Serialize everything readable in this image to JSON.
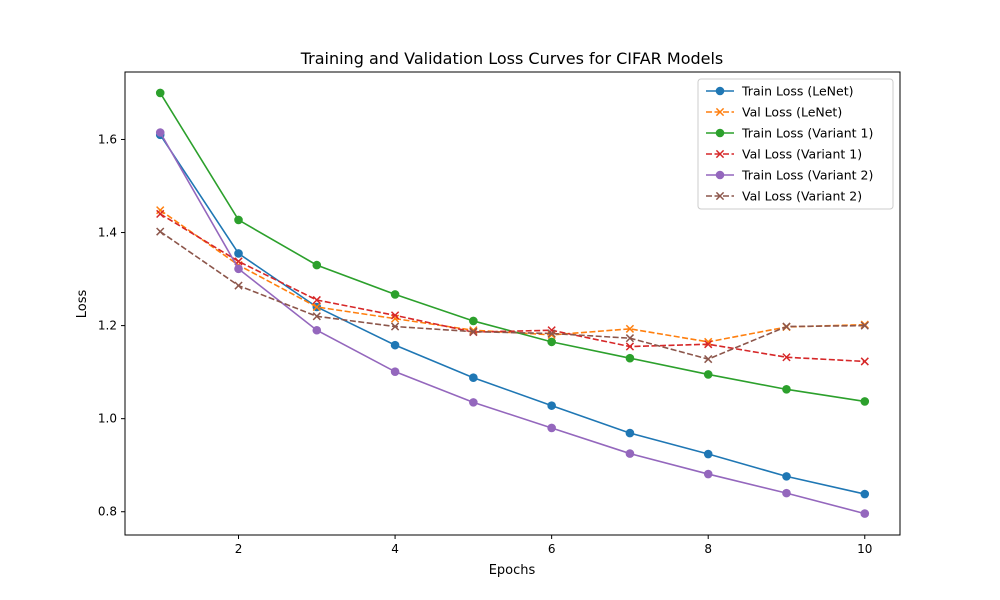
{
  "chart_data": {
    "type": "line",
    "title": "Training and Validation Loss Curves for CIFAR Models",
    "xlabel": "Epochs",
    "ylabel": "Loss",
    "xlim": [
      0.55,
      10.45
    ],
    "ylim": [
      0.75,
      1.745
    ],
    "xticks": [
      2,
      4,
      6,
      8,
      10
    ],
    "yticks": [
      0.8,
      1.0,
      1.2,
      1.4,
      1.6
    ],
    "grid": false,
    "legend_position": "top-right",
    "x": [
      1,
      2,
      3,
      4,
      5,
      6,
      7,
      8,
      9,
      10
    ],
    "series": [
      {
        "name": "Train Loss (LeNet)",
        "color": "#1f77b4",
        "style": "solid",
        "marker": "circle",
        "values": [
          1.61,
          1.355,
          1.24,
          1.158,
          1.088,
          1.028,
          0.969,
          0.924,
          0.876,
          0.838
        ]
      },
      {
        "name": "Val Loss (LeNet)",
        "color": "#ff7f0e",
        "style": "dashed",
        "marker": "x",
        "values": [
          1.448,
          1.33,
          1.24,
          1.215,
          1.19,
          1.18,
          1.193,
          1.165,
          1.197,
          1.202
        ]
      },
      {
        "name": "Train Loss (Variant 1)",
        "color": "#2ca02c",
        "style": "solid",
        "marker": "circle",
        "values": [
          1.7,
          1.427,
          1.33,
          1.267,
          1.21,
          1.165,
          1.13,
          1.095,
          1.063,
          1.037
        ]
      },
      {
        "name": "Val Loss (Variant 1)",
        "color": "#d62728",
        "style": "dashed",
        "marker": "x",
        "values": [
          1.44,
          1.338,
          1.255,
          1.222,
          1.186,
          1.19,
          1.155,
          1.16,
          1.132,
          1.123
        ]
      },
      {
        "name": "Train Loss (Variant 2)",
        "color": "#9467bd",
        "style": "solid",
        "marker": "circle",
        "values": [
          1.615,
          1.322,
          1.19,
          1.101,
          1.035,
          0.98,
          0.925,
          0.881,
          0.84,
          0.796
        ]
      },
      {
        "name": "Val Loss (Variant 2)",
        "color": "#8c564b",
        "style": "dashed",
        "marker": "x",
        "values": [
          1.402,
          1.286,
          1.22,
          1.198,
          1.187,
          1.183,
          1.173,
          1.128,
          1.198,
          1.2
        ]
      }
    ]
  }
}
